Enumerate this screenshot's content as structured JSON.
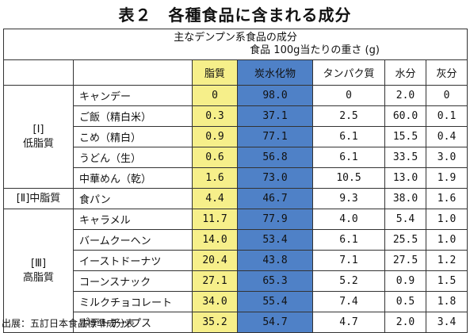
{
  "title": "表２　各種食品に含まれる成分",
  "table": {
    "header_line1": "主なデンプン系食品の成分",
    "header_line2": "食品 100g当たりの重さ (g)",
    "columns": [
      "脂質",
      "炭水化物",
      "タンパク質",
      "水分",
      "灰分"
    ],
    "groups": [
      {
        "label_line1": "[Ⅰ]",
        "label_line2": "低脂質",
        "rows": [
          {
            "food": "キャンデー",
            "fat": "0",
            "carb": "98.0",
            "protein": "0",
            "water": "2.0",
            "ash": "0"
          },
          {
            "food": "ご飯（精白米）",
            "fat": "0.3",
            "carb": "37.1",
            "protein": "2.5",
            "water": "60.0",
            "ash": "0.1"
          },
          {
            "food": "こめ（精白）",
            "fat": "0.9",
            "carb": "77.1",
            "protein": "6.1",
            "water": "15.5",
            "ash": "0.4"
          },
          {
            "food": "うどん（生）",
            "fat": "0.6",
            "carb": "56.8",
            "protein": "6.1",
            "water": "33.5",
            "ash": "3.0"
          },
          {
            "food": "中華めん（乾）",
            "fat": "1.6",
            "carb": "73.0",
            "protein": "10.5",
            "water": "13.0",
            "ash": "1.9"
          }
        ]
      },
      {
        "label_line1": "[Ⅱ]中脂質",
        "label_line2": "",
        "rows": [
          {
            "food": "食パン",
            "fat": "4.4",
            "carb": "46.7",
            "protein": "9.3",
            "water": "38.0",
            "ash": "1.6"
          }
        ]
      },
      {
        "label_line1": "[Ⅲ]",
        "label_line2": "高脂質",
        "rows": [
          {
            "food": "キャラメル",
            "fat": "11.7",
            "carb": "77.9",
            "protein": "4.0",
            "water": "5.4",
            "ash": "1.0"
          },
          {
            "food": "バームクーヘン",
            "fat": "14.0",
            "carb": "53.4",
            "protein": "6.1",
            "water": "25.5",
            "ash": "1.0"
          },
          {
            "food": "イーストドーナツ",
            "fat": "20.4",
            "carb": "43.8",
            "protein": "7.1",
            "water": "27.5",
            "ash": "1.2"
          },
          {
            "food": "コーンスナック",
            "fat": "27.1",
            "carb": "65.3",
            "protein": "5.2",
            "water": "0.9",
            "ash": "1.5"
          },
          {
            "food": "ミルクチョコレート",
            "fat": "34.0",
            "carb": "55.4",
            "protein": "7.4",
            "water": "0.5",
            "ash": "1.8"
          },
          {
            "food": "ポテトチップス",
            "fat": "35.2",
            "carb": "54.7",
            "protein": "4.7",
            "water": "2.0",
            "ash": "3.4"
          }
        ]
      }
    ]
  },
  "source": "出展：五訂日本食品標準成分表",
  "colors": {
    "fat": "#f6ef8a",
    "carb": "#4f81c7",
    "border": "#333333"
  }
}
